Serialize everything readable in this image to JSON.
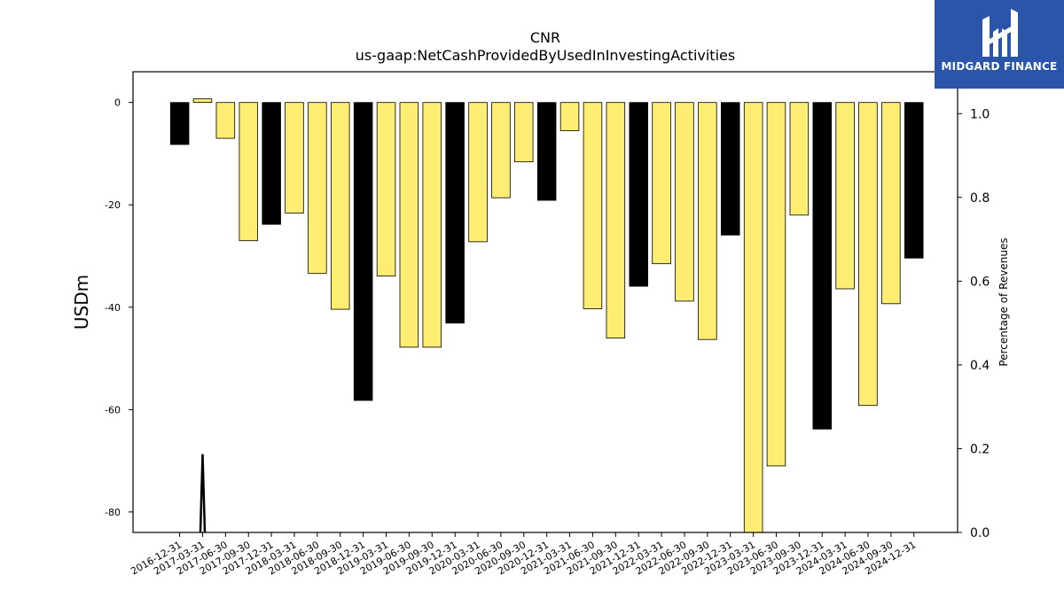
{
  "chart_data": {
    "type": "bar",
    "title": "CNR",
    "subtitle": "us-gaap:NetCashProvidedByUsedInInvestingActivities",
    "ylabel": "USDm",
    "y2label": "Percentage of Revenues",
    "ylim": [
      -84,
      6
    ],
    "y2lim": [
      0.0,
      1.1
    ],
    "yticks": [
      0,
      -20,
      -40,
      -60,
      -80
    ],
    "y2ticks": [
      "0.0",
      "0.2",
      "0.4",
      "0.6",
      "0.8",
      "1.0"
    ],
    "categories": [
      "2016-12-31",
      "2017-03-31",
      "2017-06-30",
      "2017-09-30",
      "2017-12-31",
      "2018-03-31",
      "2018-06-30",
      "2018-09-30",
      "2018-12-31",
      "2019-03-31",
      "2019-06-30",
      "2019-09-30",
      "2019-12-31",
      "2020-03-31",
      "2020-06-30",
      "2020-09-30",
      "2020-12-31",
      "2021-03-31",
      "2021-06-30",
      "2021-09-30",
      "2021-12-31",
      "2022-03-31",
      "2022-06-30",
      "2022-09-30",
      "2022-12-31",
      "2023-03-31",
      "2023-06-30",
      "2023-09-30",
      "2023-12-31",
      "2024-03-31",
      "2024-06-30",
      "2024-09-30",
      "2024-12-31"
    ],
    "values": [
      -8.2,
      0.7,
      -7.0,
      -27.0,
      -23.8,
      -21.6,
      -33.4,
      -40.4,
      -58.2,
      -33.9,
      -47.8,
      -47.8,
      -43.1,
      -27.2,
      -18.6,
      -11.6,
      -19.1,
      -5.5,
      -40.3,
      -46.0,
      -35.9,
      -31.5,
      -38.8,
      -46.3,
      -25.9,
      -84.0,
      -71.0,
      -22.0,
      -63.8,
      -36.4,
      -59.2,
      -39.3,
      -30.4
    ],
    "highlight": [
      true,
      false,
      false,
      false,
      true,
      false,
      false,
      false,
      true,
      false,
      false,
      false,
      true,
      false,
      false,
      false,
      true,
      false,
      false,
      false,
      true,
      false,
      false,
      false,
      true,
      false,
      false,
      false,
      true,
      false,
      false,
      false,
      true
    ],
    "line_series": {
      "axis": "right",
      "x": [
        "2017-03-31",
        "2017-03-31",
        "2017-03-31"
      ],
      "y": [
        0.0,
        0.187,
        0.0
      ]
    },
    "grid": false,
    "colors": {
      "bar": "#fded72",
      "bar_highlight": "#000000",
      "bar_edge": "#000000",
      "line": "#000000"
    }
  },
  "logo": {
    "text": "MIDGARD FINANCE",
    "icon": "midgard-logo-icon",
    "background": "#2b55a8"
  }
}
